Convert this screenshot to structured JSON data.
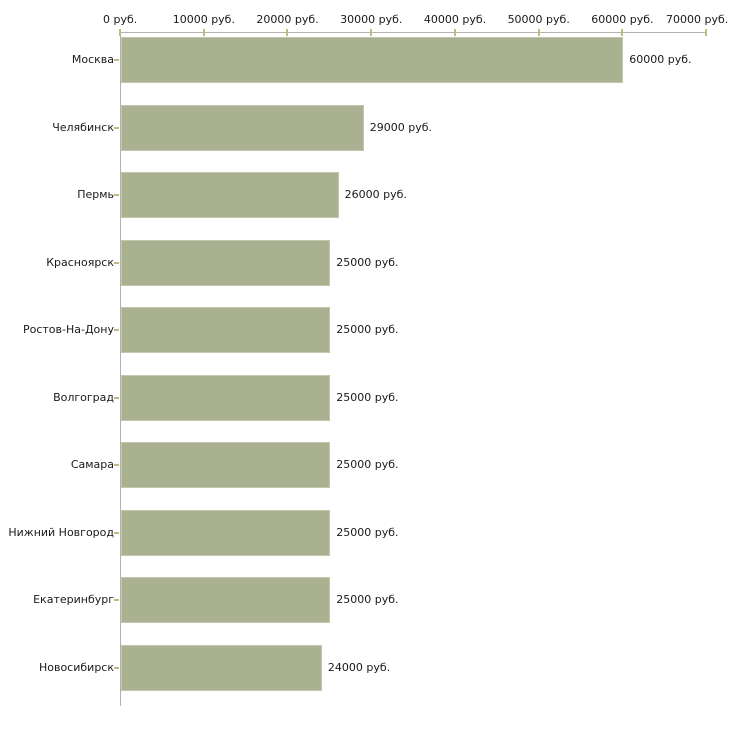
{
  "chart_data": {
    "type": "bar",
    "orientation": "horizontal",
    "title": "",
    "unit": "руб.",
    "categories": [
      "Москва",
      "Челябинск",
      "Пермь",
      "Красноярск",
      "Ростов-На-Дону",
      "Волгоград",
      "Самара",
      "Нижний Новгород",
      "Екатеринбург",
      "Новосибирск"
    ],
    "values": [
      60000,
      29000,
      26000,
      25000,
      25000,
      25000,
      25000,
      25000,
      25000,
      24000
    ],
    "value_labels": [
      "60000 руб.",
      "29000 руб.",
      "26000 руб.",
      "25000 руб.",
      "25000 руб.",
      "25000 руб.",
      "25000 руб.",
      "25000 руб.",
      "25000 руб.",
      "24000 руб."
    ],
    "x_axis": {
      "position": "top",
      "range": [
        0,
        70000
      ],
      "ticks": [
        0,
        10000,
        20000,
        30000,
        40000,
        50000,
        60000,
        70000
      ],
      "tick_labels": [
        "0 руб.",
        "10000 руб.",
        "20000 руб.",
        "30000 руб.",
        "40000 руб.",
        "50000 руб.",
        "60000 руб.",
        "70000 руб."
      ]
    },
    "grid": false,
    "legend": null,
    "colors": {
      "bar": "#a9b190",
      "bar_border": "#c3c8ac",
      "axis_line": "#b2b2b2",
      "tick": "#c3b97e",
      "text": "#1a1a1a",
      "background": "#ffffff"
    }
  }
}
